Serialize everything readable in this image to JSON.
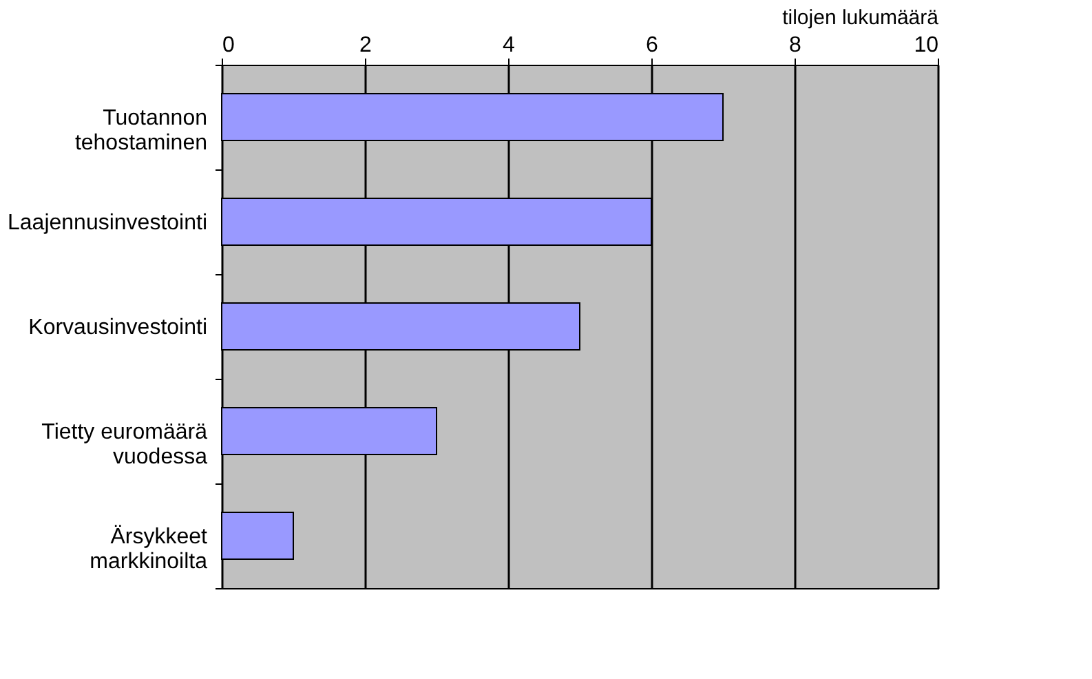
{
  "chart_data": {
    "type": "bar",
    "orientation": "horizontal",
    "xlabel": "tilojen lukumäärä",
    "categories": [
      "Tuotannon\ntehostaminen",
      "Laajennusinvestointi",
      "Korvausinvestointi",
      "Tietty euromäärä\nvuodessa",
      "Ärsykkeet\nmarkkinoilta"
    ],
    "values": [
      7,
      6,
      5,
      3,
      1
    ],
    "color": "#9999ff",
    "xlim": [
      0,
      10
    ],
    "xticks": [
      0,
      2,
      4,
      6,
      8,
      10
    ],
    "grid": "x"
  }
}
